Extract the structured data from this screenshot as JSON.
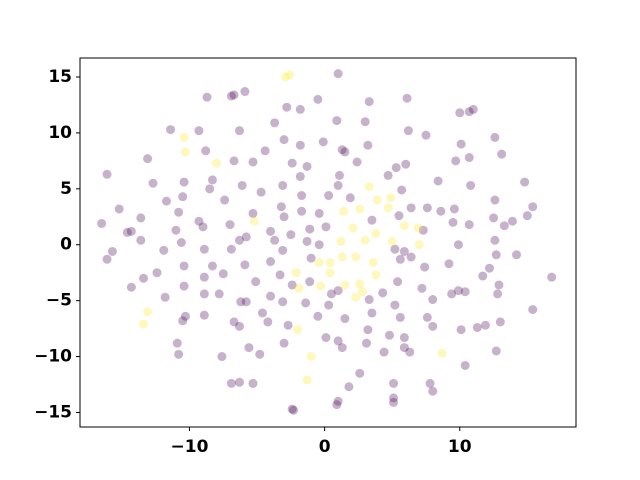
{
  "chart_data": {
    "type": "scatter",
    "alpha": 0.3,
    "xlim": [
      -18.1,
      18.6
    ],
    "ylim": [
      -16.3,
      16.7
    ],
    "xticks": [
      {
        "value": -10,
        "label": "−10"
      },
      0,
      10
    ],
    "yticks": [
      {
        "value": -15,
        "label": "−15"
      },
      {
        "value": -10,
        "label": "−10"
      },
      {
        "value": -5,
        "label": "−5"
      },
      0,
      5,
      10,
      15
    ],
    "series": [
      {
        "color": "#440154",
        "x": [
          1.0,
          -8.7,
          -6.9,
          -6.7,
          -5.9,
          6.1,
          -0.5,
          3.3,
          -2.8,
          -1.8,
          10.0,
          10.7,
          11.0,
          -11.4,
          -9.3,
          -6.3,
          -3.7,
          0.9,
          3.0,
          6.2,
          7.5,
          -3.0,
          -1.8,
          -0.1,
          1.3,
          3.2,
          12.6,
          10.1,
          13.1,
          -13.1,
          -8.8,
          -4.4,
          -5.3,
          -6.7,
          -2.4,
          -1.3,
          1.5,
          2.4,
          5.3,
          6.0,
          9.7,
          10.7,
          -16.1,
          -12.7,
          -10.4,
          -8.3,
          -6.1,
          -3.1,
          -1.8,
          1.1,
          4.7,
          5.7,
          8.4,
          10.8,
          14.8,
          -15.2,
          -11.7,
          -10.5,
          -8.5,
          -7.4,
          -4.7,
          -3.2,
          -1.7,
          0.3,
          1.0,
          1.9,
          6.4,
          7.6,
          8.6,
          9.6,
          15.4,
          12.6,
          15.0,
          -13.6,
          -10.8,
          -9.3,
          -7.0,
          -5.3,
          -3.0,
          -1.7,
          -0.4,
          3.5,
          5.5,
          12.5,
          13.9,
          -16.5,
          -14.6,
          -14.3,
          -11.0,
          -9.0,
          -5.8,
          -4.0,
          -2.5,
          -1.1,
          0.1,
          7.3,
          9.5,
          10.7,
          13.3,
          -13.6,
          -11.9,
          -10.6,
          -6.3,
          -3.7,
          -1.3,
          -0.4,
          5.2,
          5.9,
          9.9,
          12.6,
          -15.7,
          -16.1,
          -8.9,
          -6.9,
          -3.1,
          -1.0,
          -10.4,
          -12.4,
          -13.4,
          -8.3,
          -5.9,
          -4.0,
          5.6,
          6.4,
          7.4,
          9.2,
          12.2,
          12.7,
          14.2,
          16.8,
          -8.9,
          -7.5,
          -5.1,
          -3.3,
          -2.4,
          -1.1,
          5.4,
          7.2,
          11.7,
          -14.3,
          -10.4,
          -8.9,
          -7.8,
          -4.0,
          0.5,
          1.0,
          4.3,
          9.4,
          9.9,
          10.4,
          12.9,
          12.8,
          -11.8,
          -6.2,
          -5.8,
          -3.1,
          -1.4,
          0.3,
          3.3,
          5.2,
          8.0,
          15.4,
          -10.3,
          -10.5,
          -8.9,
          -6.7,
          -6.3,
          -4.6,
          -4.2,
          -2.7,
          -0.5,
          1.5,
          3.2,
          3.5,
          5.6,
          7.6,
          8.0,
          10.1,
          11.3,
          11.9,
          13.0,
          -10.9,
          -10.8,
          -5.6,
          -4.8,
          -7.6,
          -3.0,
          0.1,
          1.0,
          1.3,
          3.1,
          4.8,
          5.9,
          4.4,
          5.9,
          6.3,
          12.7,
          10.4,
          -6.9,
          -6.3,
          -5.3,
          2.6,
          1.8,
          5.1,
          7.8,
          8.0,
          5.1,
          5.1,
          1.0,
          0.9,
          -2.4,
          -2.3
        ],
        "values": [
          15.3,
          13.2,
          13.3,
          13.4,
          13.7,
          13.1,
          13.0,
          12.8,
          12.3,
          12.1,
          11.8,
          11.9,
          12.1,
          10.3,
          10.2,
          10.2,
          10.9,
          11.1,
          11.0,
          10.2,
          9.8,
          9.4,
          8.9,
          9.2,
          8.5,
          8.9,
          9.6,
          9.0,
          8.1,
          7.7,
          8.4,
          8.4,
          7.4,
          7.5,
          7.3,
          7.0,
          8.3,
          7.4,
          6.9,
          7.2,
          7.5,
          7.8,
          6.3,
          5.5,
          5.6,
          5.8,
          5.3,
          5.3,
          6.1,
          6.2,
          6.2,
          4.9,
          5.7,
          5.3,
          5.6,
          3.2,
          3.9,
          4.3,
          5.0,
          4.0,
          4.7,
          3.4,
          4.4,
          4.4,
          5.3,
          4.2,
          3.3,
          3.3,
          3.0,
          3.2,
          3.4,
          4.0,
          2.6,
          2.4,
          2.9,
          2.1,
          1.8,
          2.8,
          2.5,
          3.0,
          2.8,
          2.2,
          2.6,
          2.4,
          2.1,
          1.9,
          1.1,
          1.2,
          1.3,
          1.6,
          0.7,
          1.2,
          0.9,
          1.4,
          1.6,
          1.3,
          2.0,
          1.8,
          1.7,
          0.4,
          -0.5,
          0.2,
          0.4,
          0.4,
          0.3,
          0.0,
          -0.4,
          -0.6,
          0.0,
          0.4,
          -0.6,
          -1.3,
          -0.4,
          -0.4,
          -0.5,
          -1.2,
          -1.9,
          -2.5,
          -3.0,
          -1.9,
          -1.8,
          -1.5,
          -1.3,
          -1.1,
          -2.0,
          -1.7,
          -2.1,
          -0.9,
          -0.9,
          -2.9,
          -2.9,
          -2.6,
          -3.3,
          -2.7,
          -3.6,
          -3.3,
          -3.3,
          -3.9,
          -2.8,
          -3.8,
          -3.7,
          -4.4,
          -4.4,
          -4.6,
          -4.4,
          -4.1,
          -4.3,
          -4.4,
          -4.1,
          -4.2,
          -3.6,
          -4.4,
          -4.7,
          -5.1,
          -5.1,
          -5.1,
          -5.2,
          -5.4,
          -4.9,
          -5.4,
          -4.9,
          -5.8,
          -6.4,
          -6.8,
          -6.3,
          -6.9,
          -7.3,
          -6.1,
          -6.9,
          -7.2,
          -6.4,
          -6.6,
          -7.6,
          -6.1,
          -6.5,
          -6.5,
          -7.3,
          -7.6,
          -7.4,
          -7.2,
          -6.9,
          -8.8,
          -9.8,
          -9.2,
          -9.8,
          -10.0,
          -8.8,
          -8.3,
          -8.6,
          -9.2,
          -8.8,
          -8.1,
          -8.3,
          -9.6,
          -9.2,
          -9.6,
          -9.5,
          -10.8,
          -12.4,
          -12.3,
          -12.4,
          -11.5,
          -12.7,
          -12.4,
          -12.4,
          -13.1,
          -13.7,
          -14.1,
          -14.0,
          -14.3,
          -14.7,
          -14.8
        ]
      },
      {
        "color": "#fde725",
        "x": [
          -2.9,
          -2.6,
          -10.4,
          -10.3,
          -8.0,
          3.3,
          2.6,
          3.9,
          4.9,
          4.7,
          1.4,
          2.1,
          1.2,
          3.0,
          3.8,
          5.0,
          5.9,
          6.9,
          1.3,
          2.3,
          3.6,
          3.8,
          2.6,
          1.5,
          0.4,
          -0.4,
          -2.1,
          -1.9,
          -0.3,
          2.3,
          2.8,
          -13.1,
          -13.4,
          -2.0,
          -1.0,
          -1.3,
          8.7,
          7.0,
          -5.2,
          0.4
        ],
        "values": [
          15.0,
          15.2,
          9.6,
          8.3,
          7.3,
          5.2,
          3.2,
          4.0,
          4.2,
          3.3,
          3.0,
          1.5,
          0.3,
          0.4,
          1.0,
          0.3,
          1.7,
          1.5,
          -1.1,
          -1.1,
          -1.6,
          -2.7,
          -3.5,
          -3.6,
          -2.5,
          -1.6,
          -2.5,
          -3.9,
          -3.7,
          -4.7,
          -4.2,
          -6.0,
          -7.1,
          -7.6,
          -10.0,
          -12.1,
          -9.7,
          0.0,
          2.1,
          -1.6
        ]
      }
    ]
  }
}
